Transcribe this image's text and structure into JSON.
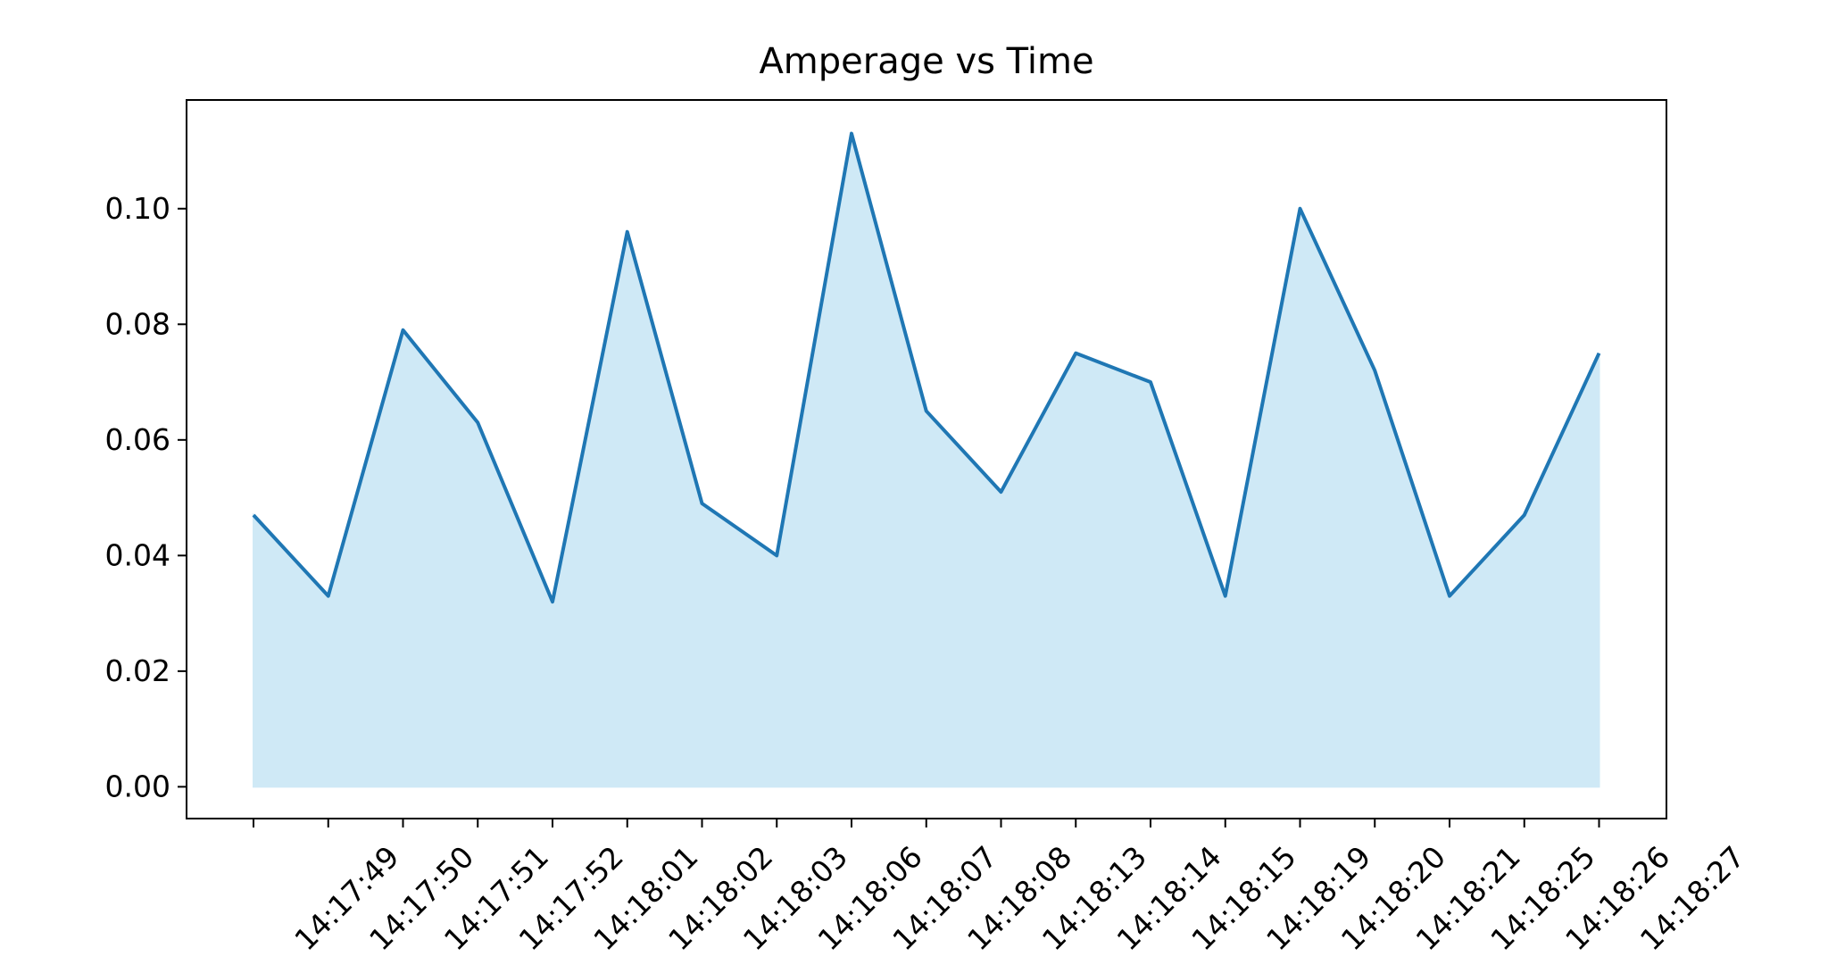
{
  "chart_data": {
    "type": "area",
    "title": "Amperage vs Time",
    "categories": [
      "14:17:49",
      "14:17:50",
      "14:17:51",
      "14:17:52",
      "14:18:01",
      "14:18:02",
      "14:18:03",
      "14:18:06",
      "14:18:07",
      "14:18:08",
      "14:18:13",
      "14:18:14",
      "14:18:15",
      "14:18:19",
      "14:18:20",
      "14:18:21",
      "14:18:25",
      "14:18:26",
      "14:18:27"
    ],
    "series": [
      {
        "color": "#1f77b4",
        "fill": "#cfe9f6",
        "values": [
          0.047,
          0.033,
          0.079,
          0.063,
          0.032,
          0.096,
          0.049,
          0.04,
          0.113,
          0.065,
          0.051,
          0.075,
          0.07,
          0.033,
          0.1,
          0.072,
          0.033,
          0.047,
          0.075
        ]
      }
    ],
    "ylim": [
      -0.0055,
      0.1188
    ],
    "yticks": [
      {
        "value": 0,
        "label": "0.00"
      },
      {
        "value": 0.02,
        "label": "0.02"
      },
      {
        "value": 0.04,
        "label": "0.04"
      },
      {
        "value": 0.06,
        "label": "0.06"
      },
      {
        "value": 0.08,
        "label": "0.08"
      },
      {
        "value": 0.1,
        "label": "0.10"
      }
    ],
    "grid": false
  }
}
